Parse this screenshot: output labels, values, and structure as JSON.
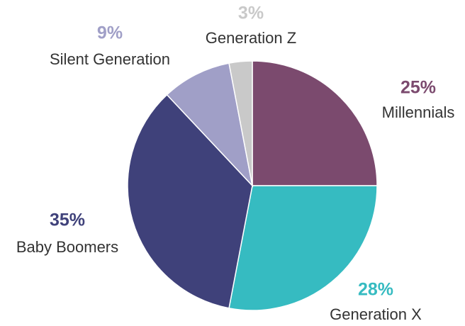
{
  "chart_data": {
    "type": "pie",
    "categories": [
      "Millennials",
      "Generation X",
      "Baby Boomers",
      "Silent Generation",
      "Generation Z"
    ],
    "values": [
      25,
      28,
      35,
      9,
      3
    ],
    "value_labels": [
      "25%",
      "28%",
      "35%",
      "9%",
      "3%"
    ],
    "colors": [
      "#7b4a6e",
      "#36bbc1",
      "#3f417a",
      "#a09fc7",
      "#c9c9c9"
    ]
  }
}
